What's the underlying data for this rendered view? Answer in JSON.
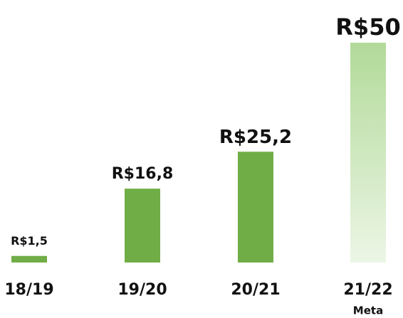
{
  "chart_data": {
    "type": "bar",
    "categories": [
      "18/19",
      "19/20",
      "20/21",
      "21/22"
    ],
    "values": [
      1.5,
      16.8,
      25.2,
      50
    ],
    "value_labels": [
      "R$1,5",
      "R$16,8",
      "R$25,2",
      "R$50"
    ],
    "colors": [
      "#70ad47",
      "#70ad47",
      "#70ad47",
      "#b2da99"
    ],
    "annotation": "Meta",
    "ylim": [
      0,
      50
    ]
  }
}
